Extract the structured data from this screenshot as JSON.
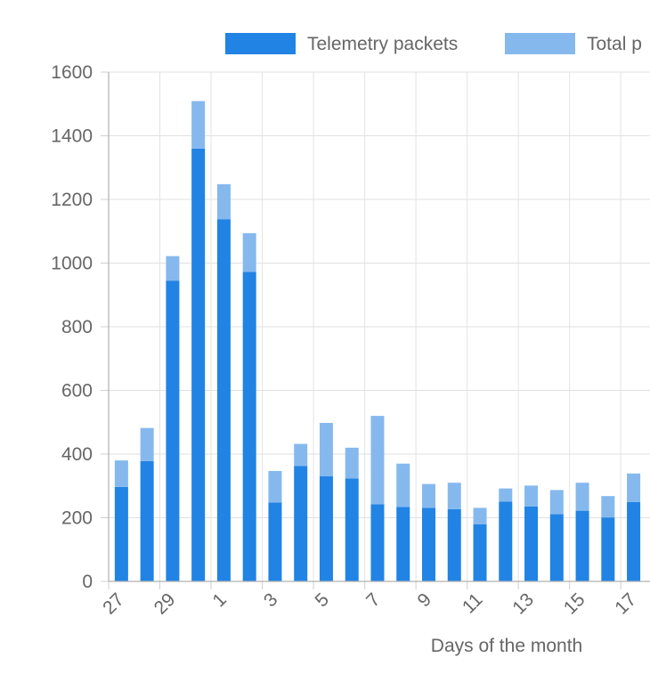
{
  "chart_data": {
    "type": "bar",
    "stacked": true,
    "title": "",
    "xlabel": "Days of the month",
    "ylabel": "",
    "ylim": [
      0,
      1600
    ],
    "yticks": [
      0,
      200,
      400,
      600,
      800,
      1000,
      1200,
      1400,
      1600
    ],
    "grid": true,
    "legend_position": "top",
    "categories": [
      "27",
      "28",
      "29",
      "30",
      "1",
      "2",
      "3",
      "4",
      "5",
      "6",
      "7",
      "8",
      "9",
      "10",
      "11",
      "12",
      "13",
      "14",
      "15",
      "16",
      "17"
    ],
    "x_tick_labels": [
      "27",
      "",
      "29",
      "",
      "1",
      "",
      "3",
      "",
      "5",
      "",
      "7",
      "",
      "9",
      "",
      "11",
      "",
      "13",
      "",
      "15",
      "",
      "17"
    ],
    "series": [
      {
        "name": "Telemetry packets",
        "color": "#2183e4",
        "values": [
          297,
          378,
          945,
          1360,
          1138,
          972,
          248,
          363,
          330,
          323,
          242,
          234,
          231,
          227,
          179,
          251,
          235,
          211,
          222,
          201,
          249
        ]
      },
      {
        "name": "Total p",
        "color": "#85b9ee",
        "values": [
          83,
          104,
          77,
          149,
          110,
          122,
          99,
          69,
          168,
          97,
          278,
          136,
          75,
          83,
          52,
          41,
          66,
          76,
          88,
          67,
          90
        ]
      }
    ]
  }
}
